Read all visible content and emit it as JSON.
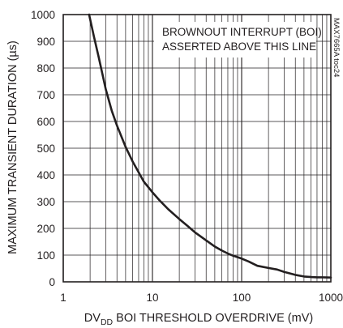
{
  "chart_data": {
    "type": "line",
    "xscale": "log",
    "xlim": [
      1,
      1000
    ],
    "ylim": [
      0,
      1000
    ],
    "x_ticks": [
      1,
      10,
      100,
      1000
    ],
    "x_tick_labels": [
      "1",
      "10",
      "100",
      "1000"
    ],
    "y_ticks": [
      0,
      100,
      200,
      300,
      400,
      500,
      600,
      700,
      800,
      900,
      1000
    ],
    "y_tick_labels": [
      "0",
      "100",
      "200",
      "300",
      "400",
      "500",
      "600",
      "700",
      "800",
      "900",
      "1000"
    ],
    "grid": true,
    "xlabel_main": "DV",
    "xlabel_sub": "DD",
    "xlabel_rest": " BOI THRESHOLD OVERDRIVE (mV)",
    "ylabel": "MAXIMUM TRANSIENT DURATION (µs)",
    "annotation_line1": "BROWNOUT INTERRUPT (BOI)",
    "annotation_line2": "ASSERTED ABOVE THIS LINE",
    "watermark": "MAX7665A toc24",
    "series": [
      {
        "x": [
          1.95,
          2.2,
          2.5,
          3.0,
          3.5,
          4.0,
          5.0,
          6.0,
          7.0,
          8.0,
          10,
          12,
          15,
          20,
          25,
          30,
          40,
          50,
          60,
          70,
          80,
          100,
          120,
          150,
          200,
          250,
          300,
          400,
          500,
          600,
          700,
          800,
          1000
        ],
        "values": [
          1000,
          920,
          840,
          720,
          640,
          585,
          505,
          450,
          410,
          375,
          335,
          305,
          272,
          235,
          208,
          185,
          155,
          132,
          117,
          106,
          98,
          87,
          76,
          60,
          52,
          46,
          37,
          26,
          20,
          18,
          17,
          17,
          16
        ]
      }
    ]
  }
}
